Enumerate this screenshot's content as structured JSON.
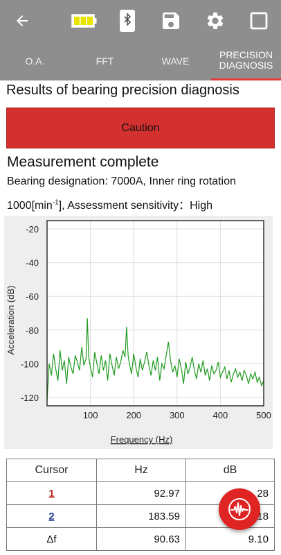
{
  "appbar": {
    "icons": [
      "back-arrow-icon",
      "battery-icon",
      "bluetooth-icon",
      "save-icon",
      "gear-icon",
      "fullscreen-icon"
    ],
    "battery_color": "#e8e400"
  },
  "tabs": [
    {
      "label": "O.A."
    },
    {
      "label": "FFT"
    },
    {
      "label": "WAVE"
    },
    {
      "label": "PRECISION DIAGNOSIS",
      "active": true
    }
  ],
  "results": {
    "title": "Results of bearing precision diagnosis",
    "status": "Caution",
    "status_color": "#d3312f",
    "measurement": "Measurement complete",
    "bearing_line": "Bearing designation: 7000A, Inner ring rotation",
    "speed_prefix": "1000[min",
    "speed_exp": "-1",
    "speed_suffix": "], Assessment sensitivity：High"
  },
  "chart_data": {
    "type": "line",
    "xlabel": "Frequency (Hz)",
    "ylabel": "Acceleration (dB)",
    "xlim": [
      0,
      500
    ],
    "ylim": [
      -125,
      -15
    ],
    "xticks": [
      100,
      200,
      300,
      400,
      500
    ],
    "yticks": [
      -20,
      -40,
      -60,
      -80,
      -100,
      -120
    ],
    "grid": true,
    "series": [
      {
        "color": "#1e9a1e",
        "x": [
          0,
          5,
          10,
          15,
          20,
          25,
          30,
          35,
          40,
          45,
          50,
          55,
          60,
          65,
          70,
          75,
          80,
          85,
          90,
          92.97,
          96,
          100,
          105,
          110,
          115,
          120,
          125,
          130,
          135,
          140,
          145,
          150,
          155,
          160,
          165,
          170,
          175,
          180,
          183.59,
          187,
          190,
          195,
          200,
          205,
          210,
          215,
          220,
          225,
          230,
          235,
          240,
          245,
          250,
          255,
          260,
          265,
          270,
          275,
          280,
          285,
          290,
          295,
          300,
          305,
          310,
          315,
          320,
          325,
          330,
          335,
          340,
          345,
          350,
          355,
          360,
          365,
          370,
          375,
          380,
          385,
          390,
          395,
          400,
          405,
          410,
          415,
          420,
          425,
          430,
          435,
          440,
          445,
          450,
          455,
          460,
          465,
          470,
          475,
          480,
          485,
          490,
          495,
          500
        ],
        "y": [
          -122,
          -100,
          -107,
          -94,
          -103,
          -110,
          -92,
          -104,
          -98,
          -112,
          -96,
          -102,
          -106,
          -95,
          -99,
          -104,
          -90,
          -101,
          -97,
          -73,
          -96,
          -102,
          -108,
          -93,
          -100,
          -106,
          -95,
          -104,
          -98,
          -110,
          -94,
          -101,
          -107,
          -96,
          -103,
          -99,
          -92,
          -96,
          -78,
          -95,
          -100,
          -106,
          -94,
          -102,
          -108,
          -97,
          -104,
          -99,
          -93,
          -101,
          -107,
          -98,
          -104,
          -96,
          -110,
          -100,
          -103,
          -95,
          -87,
          -98,
          -105,
          -101,
          -108,
          -97,
          -103,
          -112,
          -99,
          -106,
          -102,
          -96,
          -104,
          -109,
          -100,
          -105,
          -98,
          -107,
          -103,
          -110,
          -101,
          -106,
          -104,
          -99,
          -108,
          -105,
          -102,
          -109,
          -104,
          -111,
          -106,
          -103,
          -108,
          -105,
          -110,
          -104,
          -107,
          -112,
          -106,
          -109,
          -105,
          -111,
          -108,
          -113,
          -110
        ]
      }
    ]
  },
  "cursor_table": {
    "headers": [
      "Cursor",
      "Hz",
      "dB"
    ],
    "rows": [
      {
        "cursor": "1",
        "hz": "92.97",
        "db": "28"
      },
      {
        "cursor": "2",
        "hz": "183.59",
        "db": "18"
      },
      {
        "cursor": "Δf",
        "hz": "90.63",
        "db": "9.10"
      }
    ]
  },
  "fab": {
    "icon": "waveform-icon",
    "color": "#e02424"
  }
}
